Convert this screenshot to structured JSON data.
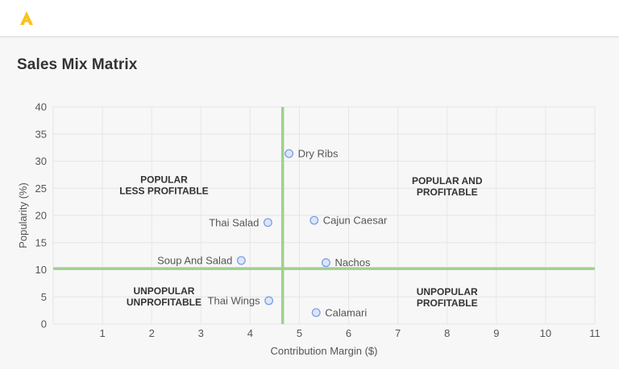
{
  "header": {
    "logo": "brand-logo"
  },
  "page": {
    "title": "Sales Mix Matrix"
  },
  "chart_data": {
    "type": "scatter",
    "title": "Sales Mix Matrix",
    "xlabel": "Contribution Margin ($)",
    "ylabel": "Popularity (%)",
    "xlim": [
      0,
      11
    ],
    "ylim": [
      0,
      40
    ],
    "x_ticks": [
      1,
      2,
      3,
      4,
      5,
      6,
      7,
      8,
      9,
      10,
      11
    ],
    "y_ticks": [
      0,
      5,
      10,
      15,
      20,
      25,
      30,
      35,
      40
    ],
    "grid": true,
    "reference_lines": {
      "x": 4.66,
      "y": 10.2,
      "color": "#9fd08f"
    },
    "quadrant_labels": [
      {
        "lines": [
          "POPULAR",
          "LESS PROFITABLE"
        ],
        "x": 2.25,
        "y": 26
      },
      {
        "lines": [
          "POPULAR AND",
          "PROFITABLE"
        ],
        "x": 8.0,
        "y": 25.8
      },
      {
        "lines": [
          "UNPOPULAR",
          "UNPROFITABLE"
        ],
        "x": 2.25,
        "y": 5.5
      },
      {
        "lines": [
          "UNPOPULAR",
          "PROFITABLE"
        ],
        "x": 8.0,
        "y": 5.3
      }
    ],
    "points": [
      {
        "label": "Dry Ribs",
        "x": 4.79,
        "y": 31.4,
        "label_side": "right"
      },
      {
        "label": "Cajun Caesar",
        "x": 5.3,
        "y": 19.1,
        "label_side": "right"
      },
      {
        "label": "Thai Salad",
        "x": 4.36,
        "y": 18.7,
        "label_side": "left"
      },
      {
        "label": "Soup And Salad",
        "x": 3.82,
        "y": 11.7,
        "label_side": "left"
      },
      {
        "label": "Nachos",
        "x": 5.54,
        "y": 11.3,
        "label_side": "right"
      },
      {
        "label": "Thai Wings",
        "x": 4.38,
        "y": 4.3,
        "label_side": "left"
      },
      {
        "label": "Calamari",
        "x": 5.34,
        "y": 2.1,
        "label_side": "right"
      }
    ],
    "colors": {
      "point_fill": "#dce6fb",
      "point_stroke": "#7a9fe6",
      "grid": "#e6e6e6",
      "ref_line": "#9fd08f"
    }
  }
}
